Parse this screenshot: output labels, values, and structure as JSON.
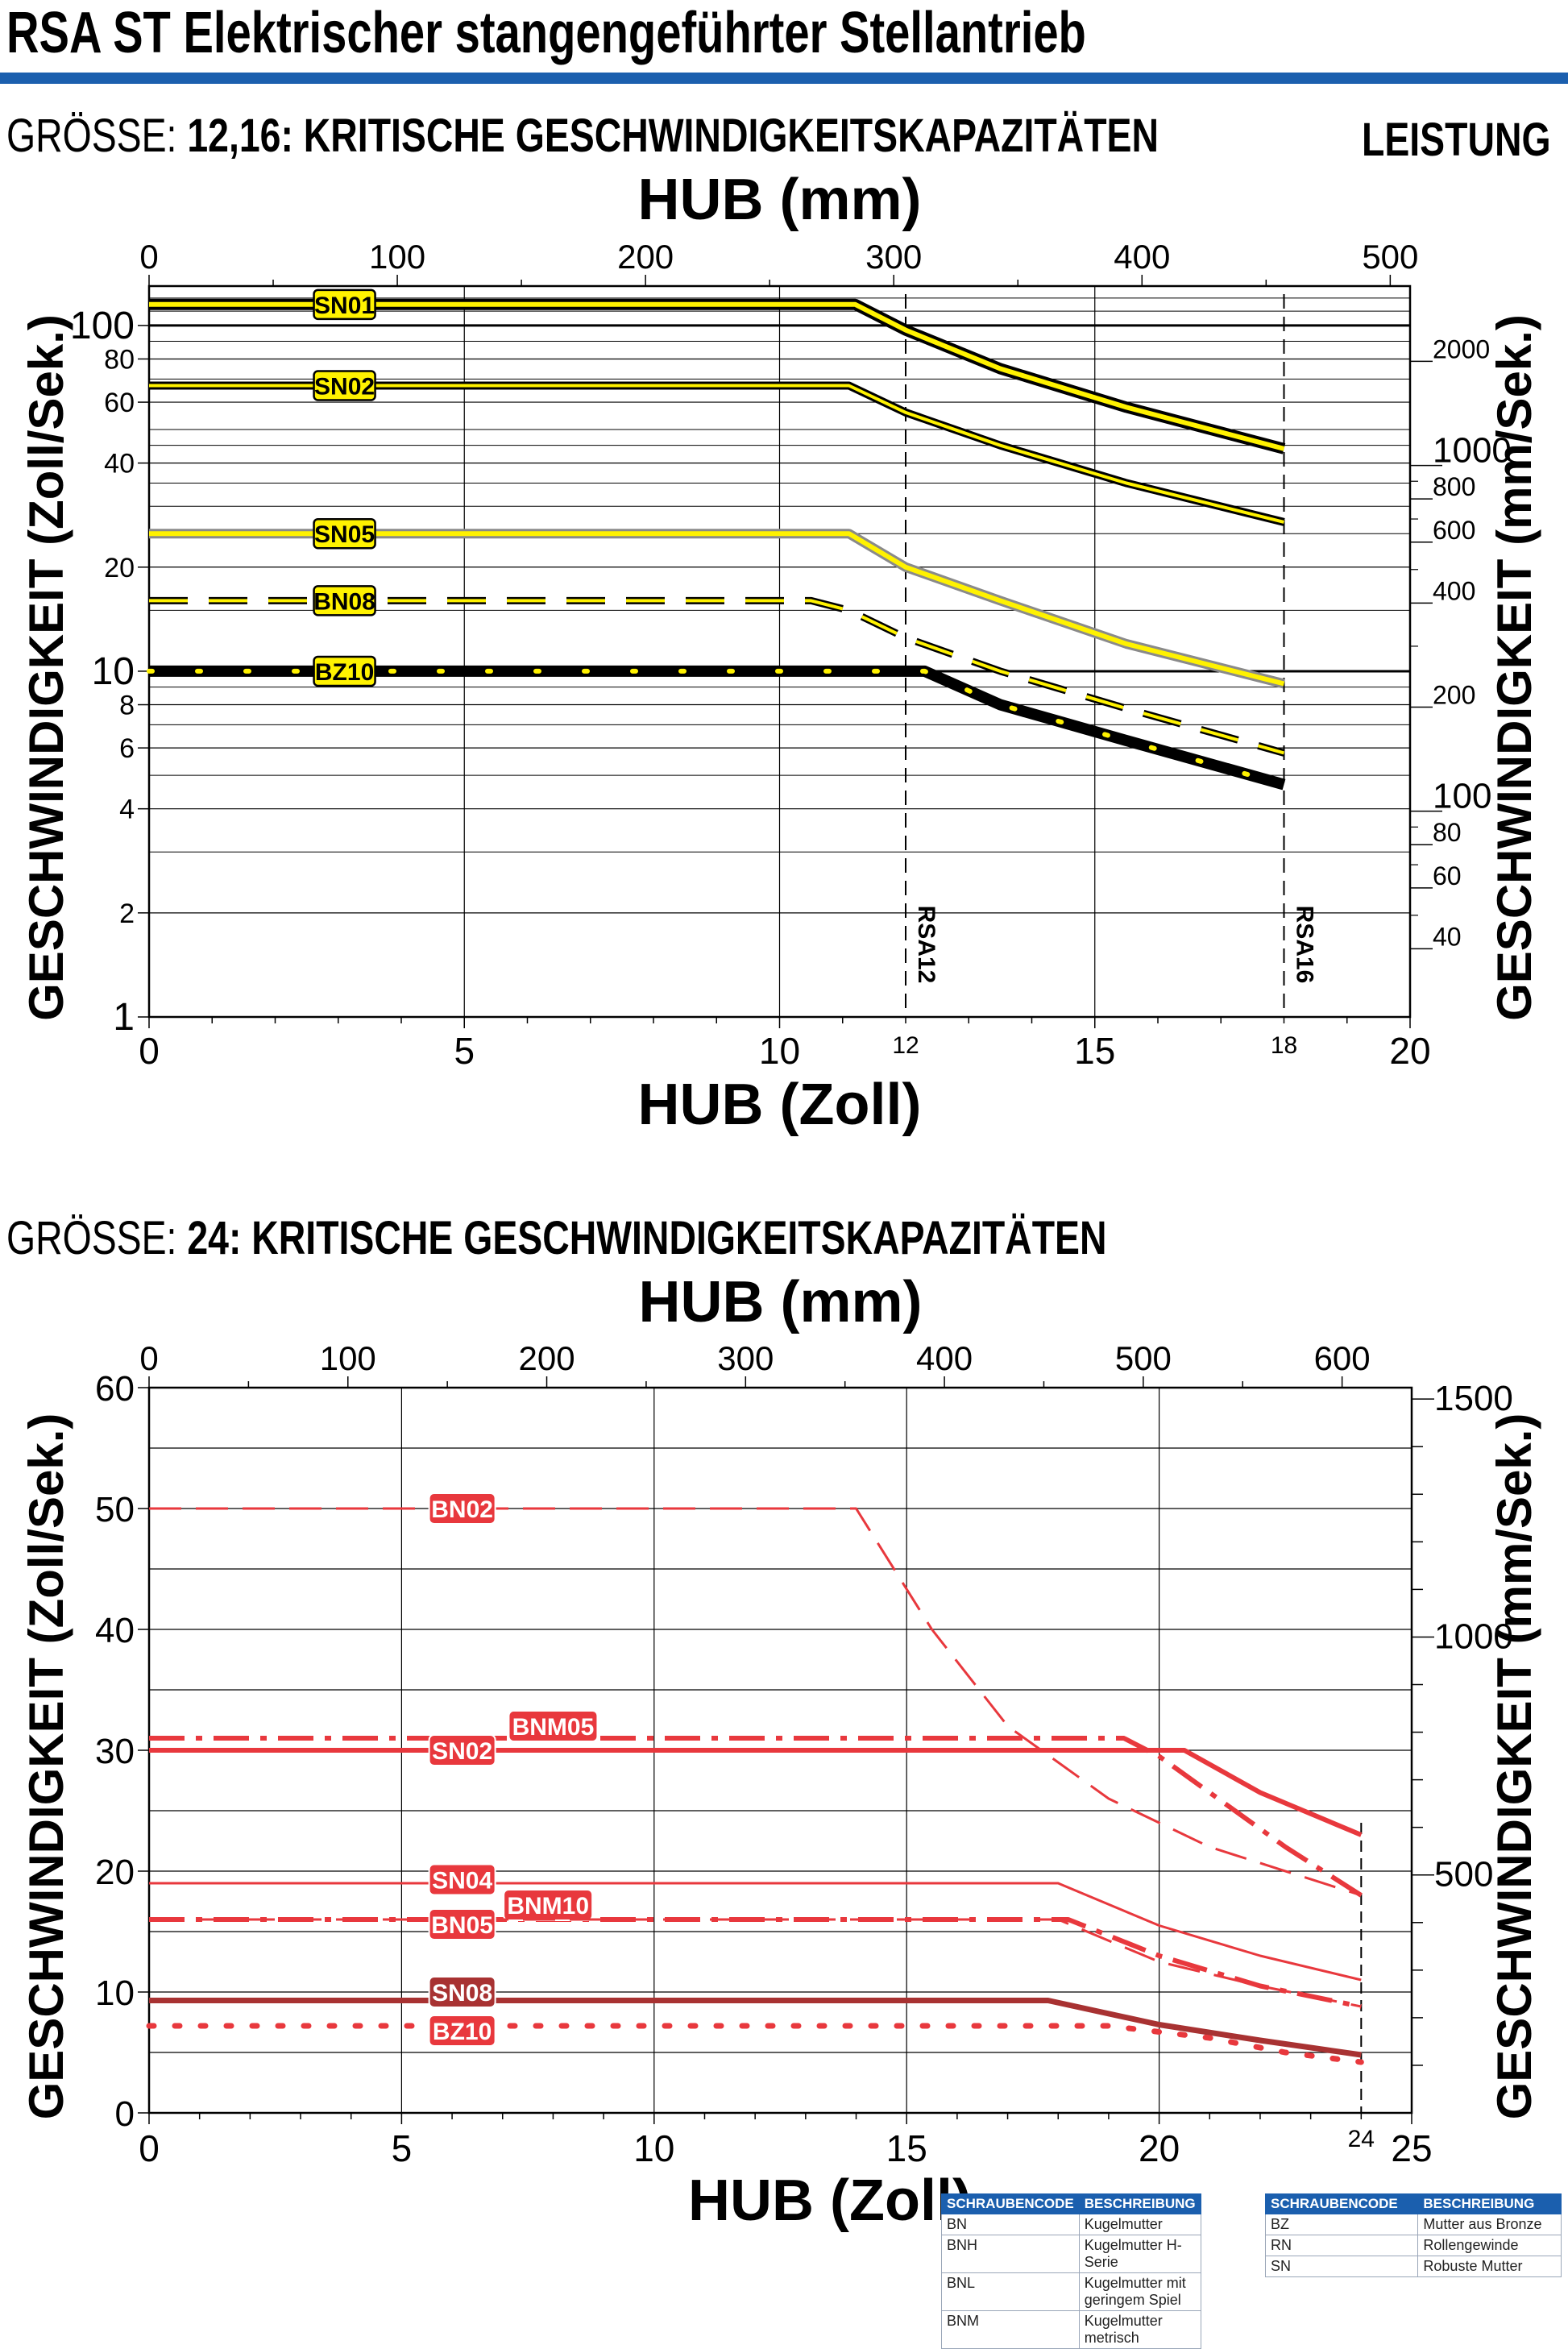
{
  "title": "RSA ST Elektrischer stangengeführter Stellantrieb",
  "performance_label": "LEISTUNG",
  "colors": {
    "accent": "#1b5fae",
    "yellow": "#fff200",
    "red": "#e8383d",
    "darkred": "#a83232"
  },
  "chart_data": [
    {
      "type": "line",
      "size_label": "GRÖSSE:",
      "title": "12,16: KRITISCHE GESCHWINDIGKEITSKAPAZITÄTEN",
      "xlabel": "HUB (Zoll)",
      "x2label": "HUB (mm)",
      "ylabel": "GESCHWINDIGKEIT (Zoll/Sek.)",
      "y2label": "GESCHWINDIGKEIT (mm/Sek.)",
      "yscale": "log",
      "xlim": [
        0,
        20
      ],
      "ylim": [
        1,
        130
      ],
      "x_ticks": [
        "0",
        "5",
        "10",
        "12",
        "15",
        "18",
        "20"
      ],
      "x_tick_values": [
        0,
        5,
        10,
        12,
        15,
        18,
        20
      ],
      "x2_ticks": [
        "0",
        "100",
        "200",
        "300",
        "400",
        "500"
      ],
      "y_ticks": [
        "1",
        "2",
        "4",
        "6",
        "8",
        "10",
        "20",
        "40",
        "60",
        "80",
        "100"
      ],
      "y_tick_values": [
        1,
        2,
        4,
        6,
        8,
        10,
        20,
        40,
        60,
        80,
        100
      ],
      "y2_ticks": [
        "40",
        "60",
        "80",
        "100",
        "200",
        "400",
        "600",
        "800",
        "1000",
        "2000"
      ],
      "y2_tick_values": [
        40,
        60,
        80,
        100,
        200,
        400,
        600,
        800,
        1000,
        2000
      ],
      "markers": [
        {
          "x": 12,
          "label": "RSA12"
        },
        {
          "x": 18,
          "label": "RSA16"
        }
      ],
      "series": [
        {
          "name": "SN01",
          "style": "yellow-solid",
          "x": [
            0,
            11.2,
            12,
            13.5,
            15.5,
            18
          ],
          "y": [
            115,
            115,
            97,
            75,
            58,
            44
          ]
        },
        {
          "name": "SN02",
          "style": "yellow-thin",
          "x": [
            0,
            11.1,
            12,
            13.5,
            15.5,
            18
          ],
          "y": [
            67,
            67,
            56,
            45,
            35,
            27
          ]
        },
        {
          "name": "SN05",
          "style": "yellow-gray",
          "x": [
            0,
            11.1,
            12,
            13.5,
            15.5,
            18
          ],
          "y": [
            25,
            25,
            20,
            16,
            12,
            9.2
          ]
        },
        {
          "name": "BN08",
          "style": "yellow-dashed",
          "x": [
            0,
            10.5,
            11.1,
            12,
            13.5,
            15.5,
            18
          ],
          "y": [
            16,
            16,
            15,
            12.5,
            10,
            7.8,
            5.8
          ]
        },
        {
          "name": "BZ10",
          "style": "black-dotted",
          "x": [
            0,
            12.3,
            13.5,
            15.5,
            18
          ],
          "y": [
            10,
            10,
            8,
            6.3,
            4.7
          ]
        }
      ]
    },
    {
      "type": "line",
      "size_label": "GRÖSSE:",
      "title": "24: KRITISCHE GESCHWINDIGKEITSKAPAZITÄTEN",
      "xlabel": "HUB (Zoll)",
      "x2label": "HUB (mm)",
      "ylabel": "GESCHWINDIGKEIT (Zoll/Sek.)",
      "y2label": "GESCHWINDIGKEIT (mm/Sek.)",
      "xlim": [
        0,
        25
      ],
      "ylim": [
        0,
        60
      ],
      "x_ticks": [
        "0",
        "5",
        "10",
        "15",
        "20",
        "24",
        "25"
      ],
      "x_tick_values": [
        0,
        5,
        10,
        15,
        20,
        24,
        25
      ],
      "x2_ticks": [
        "0",
        "100",
        "200",
        "300",
        "400",
        "500",
        "600"
      ],
      "y_ticks": [
        "0",
        "10",
        "20",
        "30",
        "40",
        "50",
        "60"
      ],
      "y_tick_values": [
        0,
        10,
        20,
        30,
        40,
        50,
        60
      ],
      "y2_ticks": [
        "500",
        "1000",
        "1500"
      ],
      "y2_tick_values": [
        500,
        1000,
        1500
      ],
      "markers": [
        {
          "x": 24,
          "label": ""
        }
      ],
      "series": [
        {
          "name": "BN02",
          "style": "red-dash",
          "x": [
            0,
            14,
            15.5,
            17,
            19,
            21,
            24
          ],
          "y": [
            50,
            50,
            40,
            32,
            26,
            22,
            18
          ]
        },
        {
          "name": "BNM05",
          "style": "red-dashdot",
          "x": [
            0,
            19.3,
            20,
            21,
            22.5,
            24
          ],
          "y": [
            31,
            31,
            29.5,
            26.5,
            22,
            18
          ]
        },
        {
          "name": "SN02",
          "style": "red-solid",
          "x": [
            0,
            20.5,
            22,
            24
          ],
          "y": [
            30,
            30,
            26.5,
            23
          ]
        },
        {
          "name": "SN04",
          "style": "red-thin",
          "x": [
            0,
            18,
            20,
            22,
            24
          ],
          "y": [
            19,
            19,
            15.5,
            13,
            11
          ]
        },
        {
          "name": "BNM10",
          "style": "red-dashdot",
          "x": [
            0,
            18.2,
            20,
            22,
            24
          ],
          "y": [
            16,
            16,
            13,
            10.5,
            8.8
          ]
        },
        {
          "name": "BN05",
          "style": "red-dash",
          "x": [
            0,
            18,
            20,
            22,
            24
          ],
          "y": [
            16,
            16,
            12.5,
            10.5,
            8.8
          ]
        },
        {
          "name": "SN08",
          "style": "darkred-solid",
          "x": [
            0,
            17.8,
            20,
            22,
            24
          ],
          "y": [
            9.3,
            9.3,
            7.3,
            6,
            4.8
          ]
        },
        {
          "name": "BZ10",
          "style": "red-dotted",
          "x": [
            0,
            19,
            21,
            22.5,
            24
          ],
          "y": [
            7.2,
            7.2,
            6.2,
            5,
            4.2
          ]
        }
      ]
    }
  ],
  "legend_left": {
    "headers": [
      "SCHRAUBENCODE",
      "BESCHREIBUNG"
    ],
    "rows": [
      [
        "BN",
        "Kugelmutter"
      ],
      [
        "BNH",
        "Kugelmutter H-Serie"
      ],
      [
        "BNL",
        "Kugelmutter mit geringem Spiel"
      ],
      [
        "BNM",
        "Kugelmutter metrisch"
      ]
    ]
  },
  "legend_right": {
    "headers": [
      "SCHRAUBENCODE",
      "BESCHREIBUNG"
    ],
    "rows": [
      [
        "BZ",
        "Mutter aus Bronze"
      ],
      [
        "RN",
        "Rollengewinde"
      ],
      [
        "SN",
        "Robuste Mutter"
      ]
    ]
  }
}
